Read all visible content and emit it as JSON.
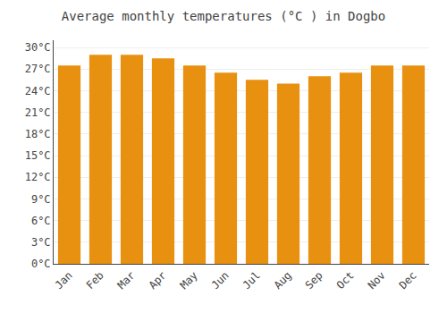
{
  "chart_data": {
    "type": "bar",
    "title": "Average monthly temperatures (°C ) in Dogbo",
    "categories": [
      "Jan",
      "Feb",
      "Mar",
      "Apr",
      "May",
      "Jun",
      "Jul",
      "Aug",
      "Sep",
      "Oct",
      "Nov",
      "Dec"
    ],
    "values": [
      27.5,
      29.0,
      29.0,
      28.5,
      27.5,
      26.5,
      25.5,
      25.0,
      26.0,
      26.5,
      27.5,
      27.5
    ],
    "color": "#E89010",
    "ylim": [
      0,
      31
    ],
    "yticks": [
      {
        "value": 0,
        "label": "0°C"
      },
      {
        "value": 3,
        "label": "3°C"
      },
      {
        "value": 6,
        "label": "6°C"
      },
      {
        "value": 9,
        "label": "9°C"
      },
      {
        "value": 12,
        "label": "12°C"
      },
      {
        "value": 15,
        "label": "15°C"
      },
      {
        "value": 18,
        "label": "18°C"
      },
      {
        "value": 21,
        "label": "21°C"
      },
      {
        "value": 24,
        "label": "24°C"
      },
      {
        "value": 27,
        "label": "27°C"
      },
      {
        "value": 30,
        "label": "30°C"
      }
    ],
    "grid": true
  }
}
